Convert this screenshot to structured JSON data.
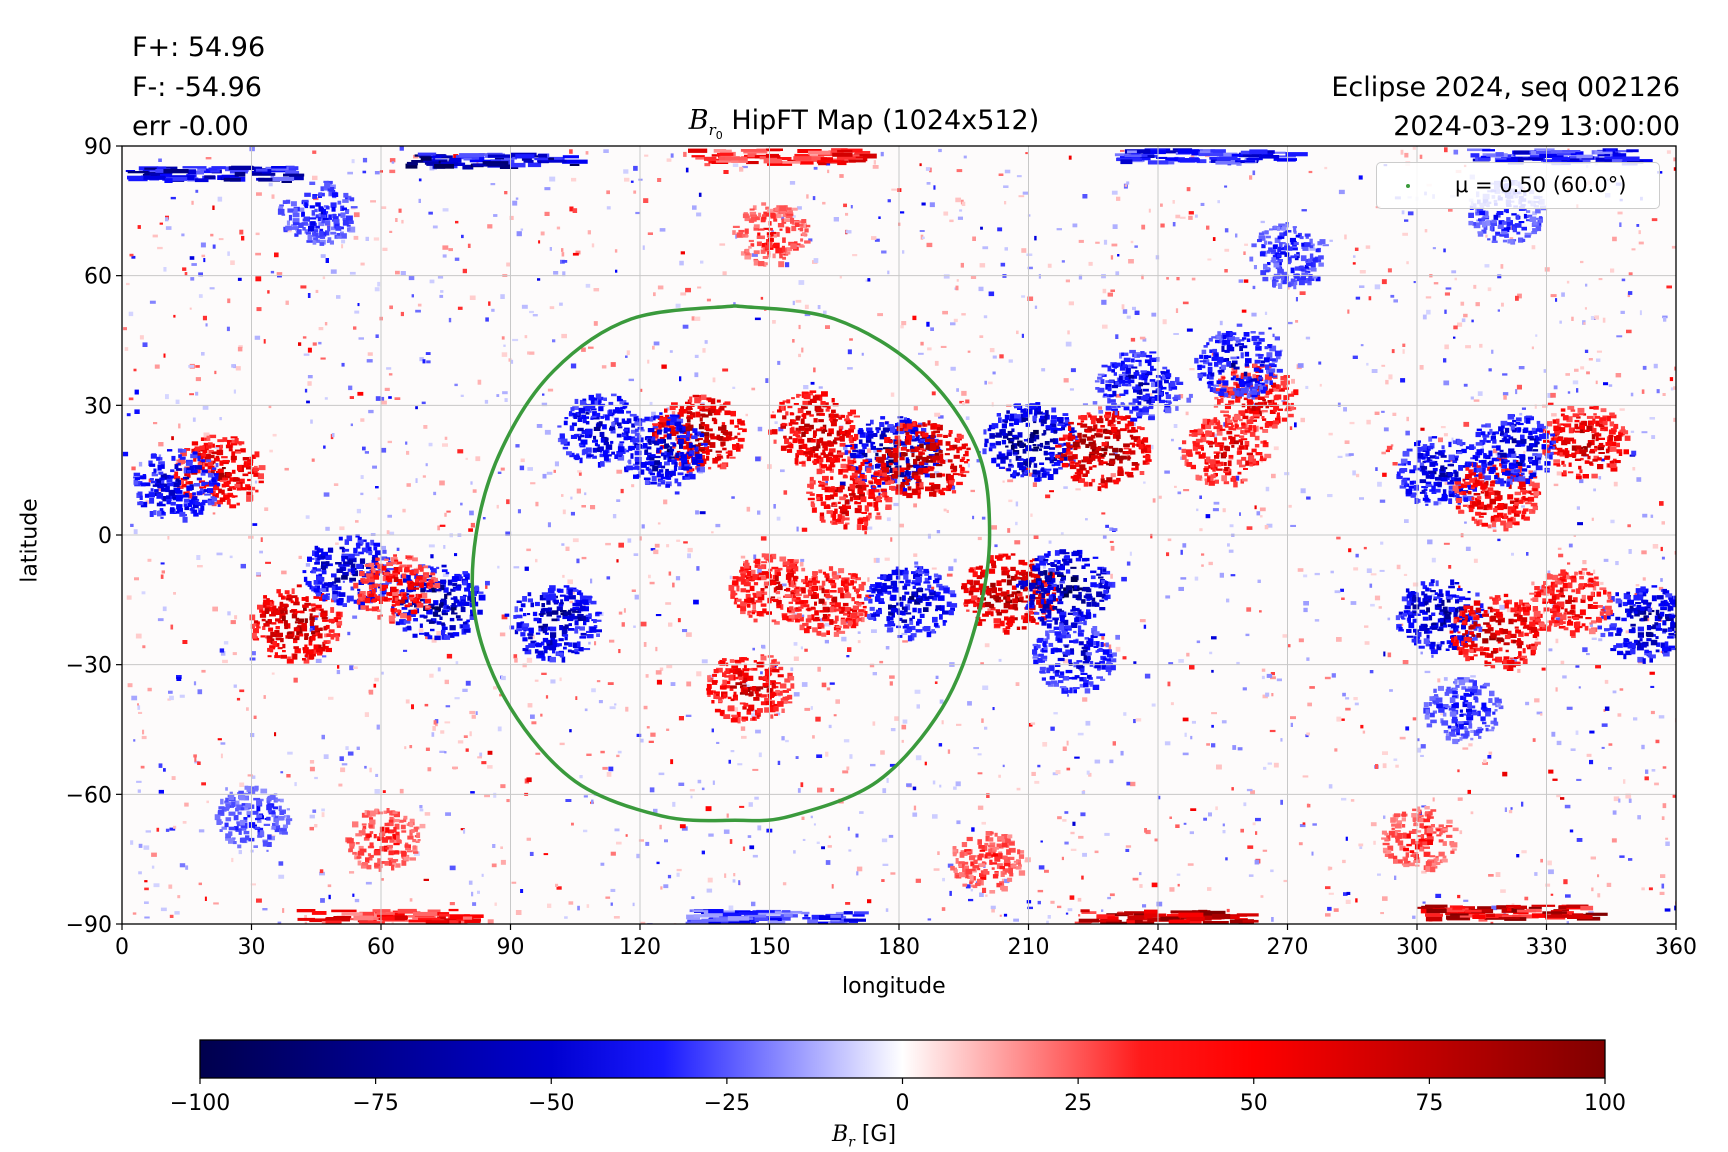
{
  "header": {
    "flux_pos": "F+: 54.96",
    "flux_neg": "F-: -54.96",
    "err": "err -0.00",
    "event": "Eclipse 2024, seq 002126",
    "datetime": "2024-03-29 13:00:00"
  },
  "colors": {
    "contour": "#3a9a3c",
    "grid": "#c8c8c8",
    "negative": "#000040",
    "positive": "#800000"
  },
  "chart_data": [
    {
      "type": "heatmap",
      "title": "B_r0 HipFT Map (1024x512)",
      "title_parts": {
        "symbol": "B",
        "subscript": "r",
        "subsubscript": "0",
        "text": "HipFT Map (1024x512)"
      },
      "xlabel": "longitude",
      "ylabel": "latitude",
      "xlim": [
        0,
        360
      ],
      "ylim": [
        -90,
        90
      ],
      "xticks": [
        0,
        30,
        60,
        90,
        120,
        150,
        180,
        210,
        240,
        270,
        300,
        330,
        360
      ],
      "yticks": [
        -90,
        -60,
        -30,
        0,
        30,
        60,
        90
      ],
      "grid": true,
      "colormap": "seismic",
      "clim": [
        -100,
        100
      ],
      "legend": {
        "label": "μ = 0.50 (60.0°)",
        "placement": "upper right"
      },
      "contour": {
        "name": "μ = 0.50 (60.0°)",
        "lon": [
          142,
          165,
          185,
          198,
          201,
          198,
          190,
          175,
          155,
          142,
          125,
          105,
          90,
          82,
          82,
          88,
          100,
          118,
          142
        ],
        "lat": [
          53,
          50,
          38,
          20,
          0,
          -20,
          -40,
          -57,
          -65,
          -66,
          -65,
          -57,
          -40,
          -20,
          0,
          20,
          38,
          50,
          53
        ]
      },
      "regions": [
        {
          "lon": 22,
          "lat": 15,
          "sign": 1,
          "strength": 85
        },
        {
          "lon": 12,
          "lat": 12,
          "sign": -1,
          "strength": 80
        },
        {
          "lon": 40,
          "lat": -20,
          "sign": 1,
          "strength": 95
        },
        {
          "lon": 52,
          "lat": -8,
          "sign": -1,
          "strength": 85
        },
        {
          "lon": 72,
          "lat": -15,
          "sign": -1,
          "strength": 95
        },
        {
          "lon": 63,
          "lat": -12,
          "sign": 1,
          "strength": 70
        },
        {
          "lon": 100,
          "lat": -20,
          "sign": -1,
          "strength": 90
        },
        {
          "lon": 110,
          "lat": 25,
          "sign": -1,
          "strength": 80
        },
        {
          "lon": 133,
          "lat": 24,
          "sign": 1,
          "strength": 95
        },
        {
          "lon": 125,
          "lat": 20,
          "sign": -1,
          "strength": 85
        },
        {
          "lon": 160,
          "lat": 25,
          "sign": 1,
          "strength": 90
        },
        {
          "lon": 178,
          "lat": 19,
          "sign": -1,
          "strength": 95
        },
        {
          "lon": 185,
          "lat": 18,
          "sign": 1,
          "strength": 100
        },
        {
          "lon": 168,
          "lat": 10,
          "sign": 1,
          "strength": 80
        },
        {
          "lon": 150,
          "lat": -12,
          "sign": 1,
          "strength": 75
        },
        {
          "lon": 163,
          "lat": -15,
          "sign": 1,
          "strength": 75
        },
        {
          "lon": 182,
          "lat": -15,
          "sign": -1,
          "strength": 85
        },
        {
          "lon": 145,
          "lat": -35,
          "sign": 1,
          "strength": 80
        },
        {
          "lon": 210,
          "lat": 22,
          "sign": -1,
          "strength": 100
        },
        {
          "lon": 227,
          "lat": 20,
          "sign": 1,
          "strength": 100
        },
        {
          "lon": 205,
          "lat": -13,
          "sign": 1,
          "strength": 100
        },
        {
          "lon": 218,
          "lat": -12,
          "sign": -1,
          "strength": 100
        },
        {
          "lon": 220,
          "lat": -28,
          "sign": -1,
          "strength": 75
        },
        {
          "lon": 255,
          "lat": 20,
          "sign": 1,
          "strength": 75
        },
        {
          "lon": 262,
          "lat": 32,
          "sign": 1,
          "strength": 75
        },
        {
          "lon": 258,
          "lat": 40,
          "sign": -1,
          "strength": 75
        },
        {
          "lon": 235,
          "lat": 35,
          "sign": -1,
          "strength": 75
        },
        {
          "lon": 305,
          "lat": 15,
          "sign": -1,
          "strength": 80
        },
        {
          "lon": 318,
          "lat": 10,
          "sign": 1,
          "strength": 80
        },
        {
          "lon": 305,
          "lat": -18,
          "sign": -1,
          "strength": 90
        },
        {
          "lon": 318,
          "lat": -22,
          "sign": 1,
          "strength": 90
        },
        {
          "lon": 338,
          "lat": 22,
          "sign": 1,
          "strength": 85
        },
        {
          "lon": 322,
          "lat": 20,
          "sign": -1,
          "strength": 80
        },
        {
          "lon": 352,
          "lat": -20,
          "sign": -1,
          "strength": 90
        },
        {
          "lon": 335,
          "lat": -15,
          "sign": 1,
          "strength": 70
        },
        {
          "lon": 310,
          "lat": -40,
          "sign": -1,
          "strength": 60
        },
        {
          "lon": 45,
          "lat": 75,
          "sign": -1,
          "strength": 60
        },
        {
          "lon": 270,
          "lat": 65,
          "sign": -1,
          "strength": 60
        },
        {
          "lon": 320,
          "lat": 75,
          "sign": -1,
          "strength": 60
        },
        {
          "lon": 150,
          "lat": 70,
          "sign": 1,
          "strength": 55
        },
        {
          "lon": 60,
          "lat": -70,
          "sign": 1,
          "strength": 55
        },
        {
          "lon": 300,
          "lat": -70,
          "sign": 1,
          "strength": 55
        },
        {
          "lon": 200,
          "lat": -75,
          "sign": 1,
          "strength": 55
        },
        {
          "lon": 30,
          "lat": -65,
          "sign": -1,
          "strength": 55
        }
      ],
      "polar_bands": [
        {
          "lon": 85,
          "lat": 87,
          "sign": -1,
          "strength": 100
        },
        {
          "lon": 20,
          "lat": 84,
          "sign": -1,
          "strength": 90
        },
        {
          "lon": 150,
          "lat": 88,
          "sign": 1,
          "strength": 70
        },
        {
          "lon": 250,
          "lat": 88,
          "sign": -1,
          "strength": 70
        },
        {
          "lon": 330,
          "lat": 88,
          "sign": -1,
          "strength": 70
        },
        {
          "lon": 240,
          "lat": -88,
          "sign": 1,
          "strength": 100
        },
        {
          "lon": 320,
          "lat": -87,
          "sign": 1,
          "strength": 100
        },
        {
          "lon": 60,
          "lat": -88,
          "sign": 1,
          "strength": 70
        },
        {
          "lon": 150,
          "lat": -88,
          "sign": -1,
          "strength": 60
        }
      ]
    },
    {
      "type": "colorbar",
      "label": "B_r [G]",
      "label_parts": {
        "symbol": "B",
        "subscript": "r",
        "unit": "[G]"
      },
      "range": [
        -100,
        100
      ],
      "ticks": [
        -100,
        -75,
        -50,
        -25,
        0,
        25,
        50,
        75,
        100
      ],
      "colormap": "seismic"
    }
  ]
}
